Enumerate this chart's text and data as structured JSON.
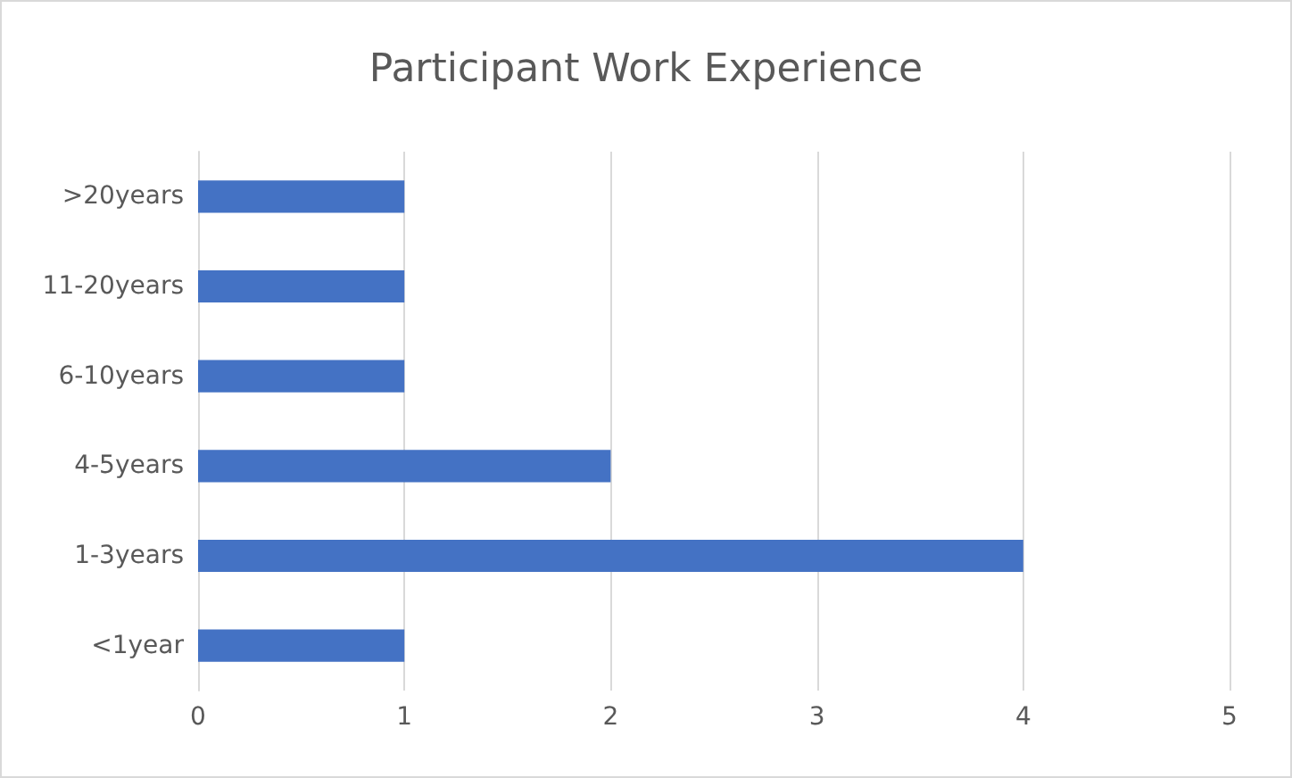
{
  "chart_data": {
    "type": "bar",
    "title": "Participant Work Experience",
    "orientation": "horizontal",
    "categories": [
      ">20years",
      "11-20years",
      "6-10years",
      "4-5years",
      "1-3years",
      "<1year"
    ],
    "values": [
      1,
      1,
      1,
      2,
      4,
      1
    ],
    "color": "#4472c4",
    "xlim": [
      0,
      5
    ],
    "xticks": [
      0,
      1,
      2,
      3,
      4,
      5
    ],
    "grid": "x"
  }
}
